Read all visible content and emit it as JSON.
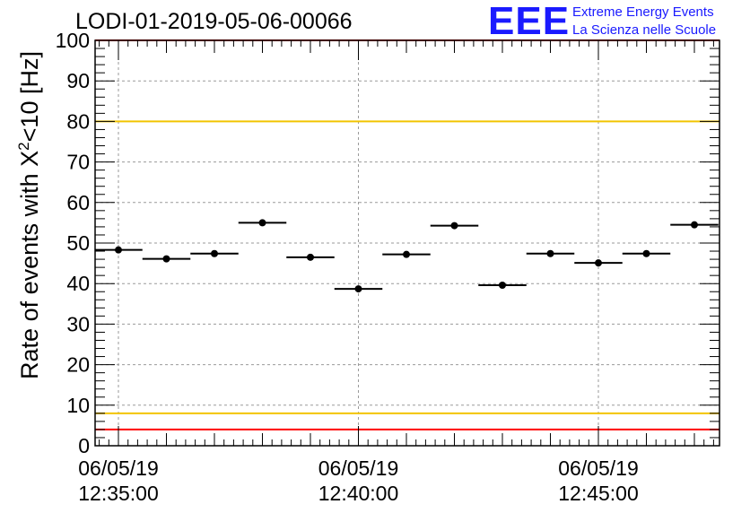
{
  "title": "LODI-01-2019-05-06-00066",
  "logo": {
    "letters": "EEE",
    "line1": "Extreme Energy Events",
    "line2": "La Scienza nelle Scuole"
  },
  "colors": {
    "marker": "#000000",
    "limit_red": "#ff0000",
    "limit_yellow": "#f2c400",
    "grid": "#9a9a9a",
    "logo_blue": "#1a1aff"
  },
  "chart_data": {
    "type": "scatter",
    "title": "LODI-01-2019-05-06-00066",
    "ylabel": "Rate of events with",
    "ylabel_chi": "X",
    "ylabel_sup": "2",
    "ylabel_tail": "<10 [Hz]",
    "ylim": [
      0,
      100
    ],
    "y_ticks": [
      "0",
      "10",
      "20",
      "30",
      "40",
      "50",
      "60",
      "70",
      "80",
      "90",
      "100"
    ],
    "x_range_minutes": [
      -0.5,
      12.6
    ],
    "x_ticks": [
      {
        "minute": 0,
        "date": "06/05/19",
        "time": "12:35:00"
      },
      {
        "minute": 5,
        "date": "06/05/19",
        "time": "12:40:00"
      },
      {
        "minute": 10,
        "date": "06/05/19",
        "time": "12:45:00"
      }
    ],
    "bin_width_minutes": 1,
    "points": [
      {
        "x": 0,
        "y": 48.3
      },
      {
        "x": 1,
        "y": 46.1
      },
      {
        "x": 2,
        "y": 47.4
      },
      {
        "x": 3,
        "y": 55.0
      },
      {
        "x": 4,
        "y": 46.5
      },
      {
        "x": 5,
        "y": 38.7
      },
      {
        "x": 6,
        "y": 47.2
      },
      {
        "x": 7,
        "y": 54.3
      },
      {
        "x": 8,
        "y": 39.6
      },
      {
        "x": 9,
        "y": 47.4
      },
      {
        "x": 10,
        "y": 45.1
      },
      {
        "x": 11,
        "y": 47.4
      },
      {
        "x": 12,
        "y": 54.5
      }
    ],
    "reference_lines": [
      {
        "y": 100,
        "color": "red"
      },
      {
        "y": 80,
        "color": "yellow"
      },
      {
        "y": 8,
        "color": "yellow"
      },
      {
        "y": 4,
        "color": "red"
      }
    ],
    "grid": true
  }
}
